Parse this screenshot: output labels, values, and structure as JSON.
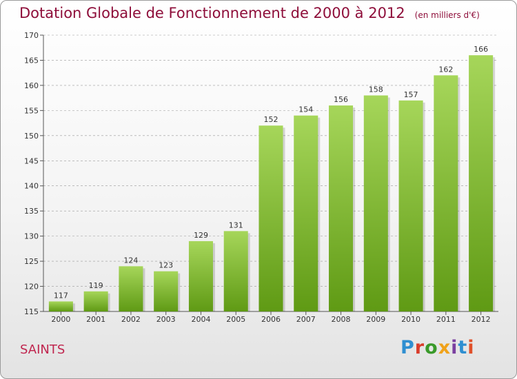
{
  "header": {
    "title": "Dotation Globale de Fonctionnement de 2000 à 2012",
    "unit": "(en milliers d'€)"
  },
  "footer": {
    "city": "SAINTS",
    "logo": "Proxiti",
    "logo_colors": [
      "#2f8fd1",
      "#d93d2b",
      "#3a9a2a",
      "#f0a21a",
      "#7a3fa0",
      "#2f8fd1",
      "#e0502a"
    ]
  },
  "colors": {
    "bar_top": "#a6d65a",
    "bar_bottom": "#5f9a14",
    "title": "#8e0e3a",
    "grid": "#999999"
  },
  "chart_data": {
    "type": "bar",
    "title": "Dotation Globale de Fonctionnement de 2000 à 2012",
    "subtitle": "(en milliers d'€)",
    "categories": [
      "2000",
      "2001",
      "2002",
      "2003",
      "2004",
      "2005",
      "2006",
      "2007",
      "2008",
      "2009",
      "2010",
      "2011",
      "2012"
    ],
    "values": [
      117,
      119,
      124,
      123,
      129,
      131,
      152,
      154,
      156,
      158,
      157,
      162,
      166
    ],
    "ylim": [
      115,
      170
    ],
    "yticks": [
      115,
      120,
      125,
      130,
      135,
      140,
      145,
      150,
      155,
      160,
      165,
      170
    ],
    "xlabel": "",
    "ylabel": "",
    "grid": true
  }
}
